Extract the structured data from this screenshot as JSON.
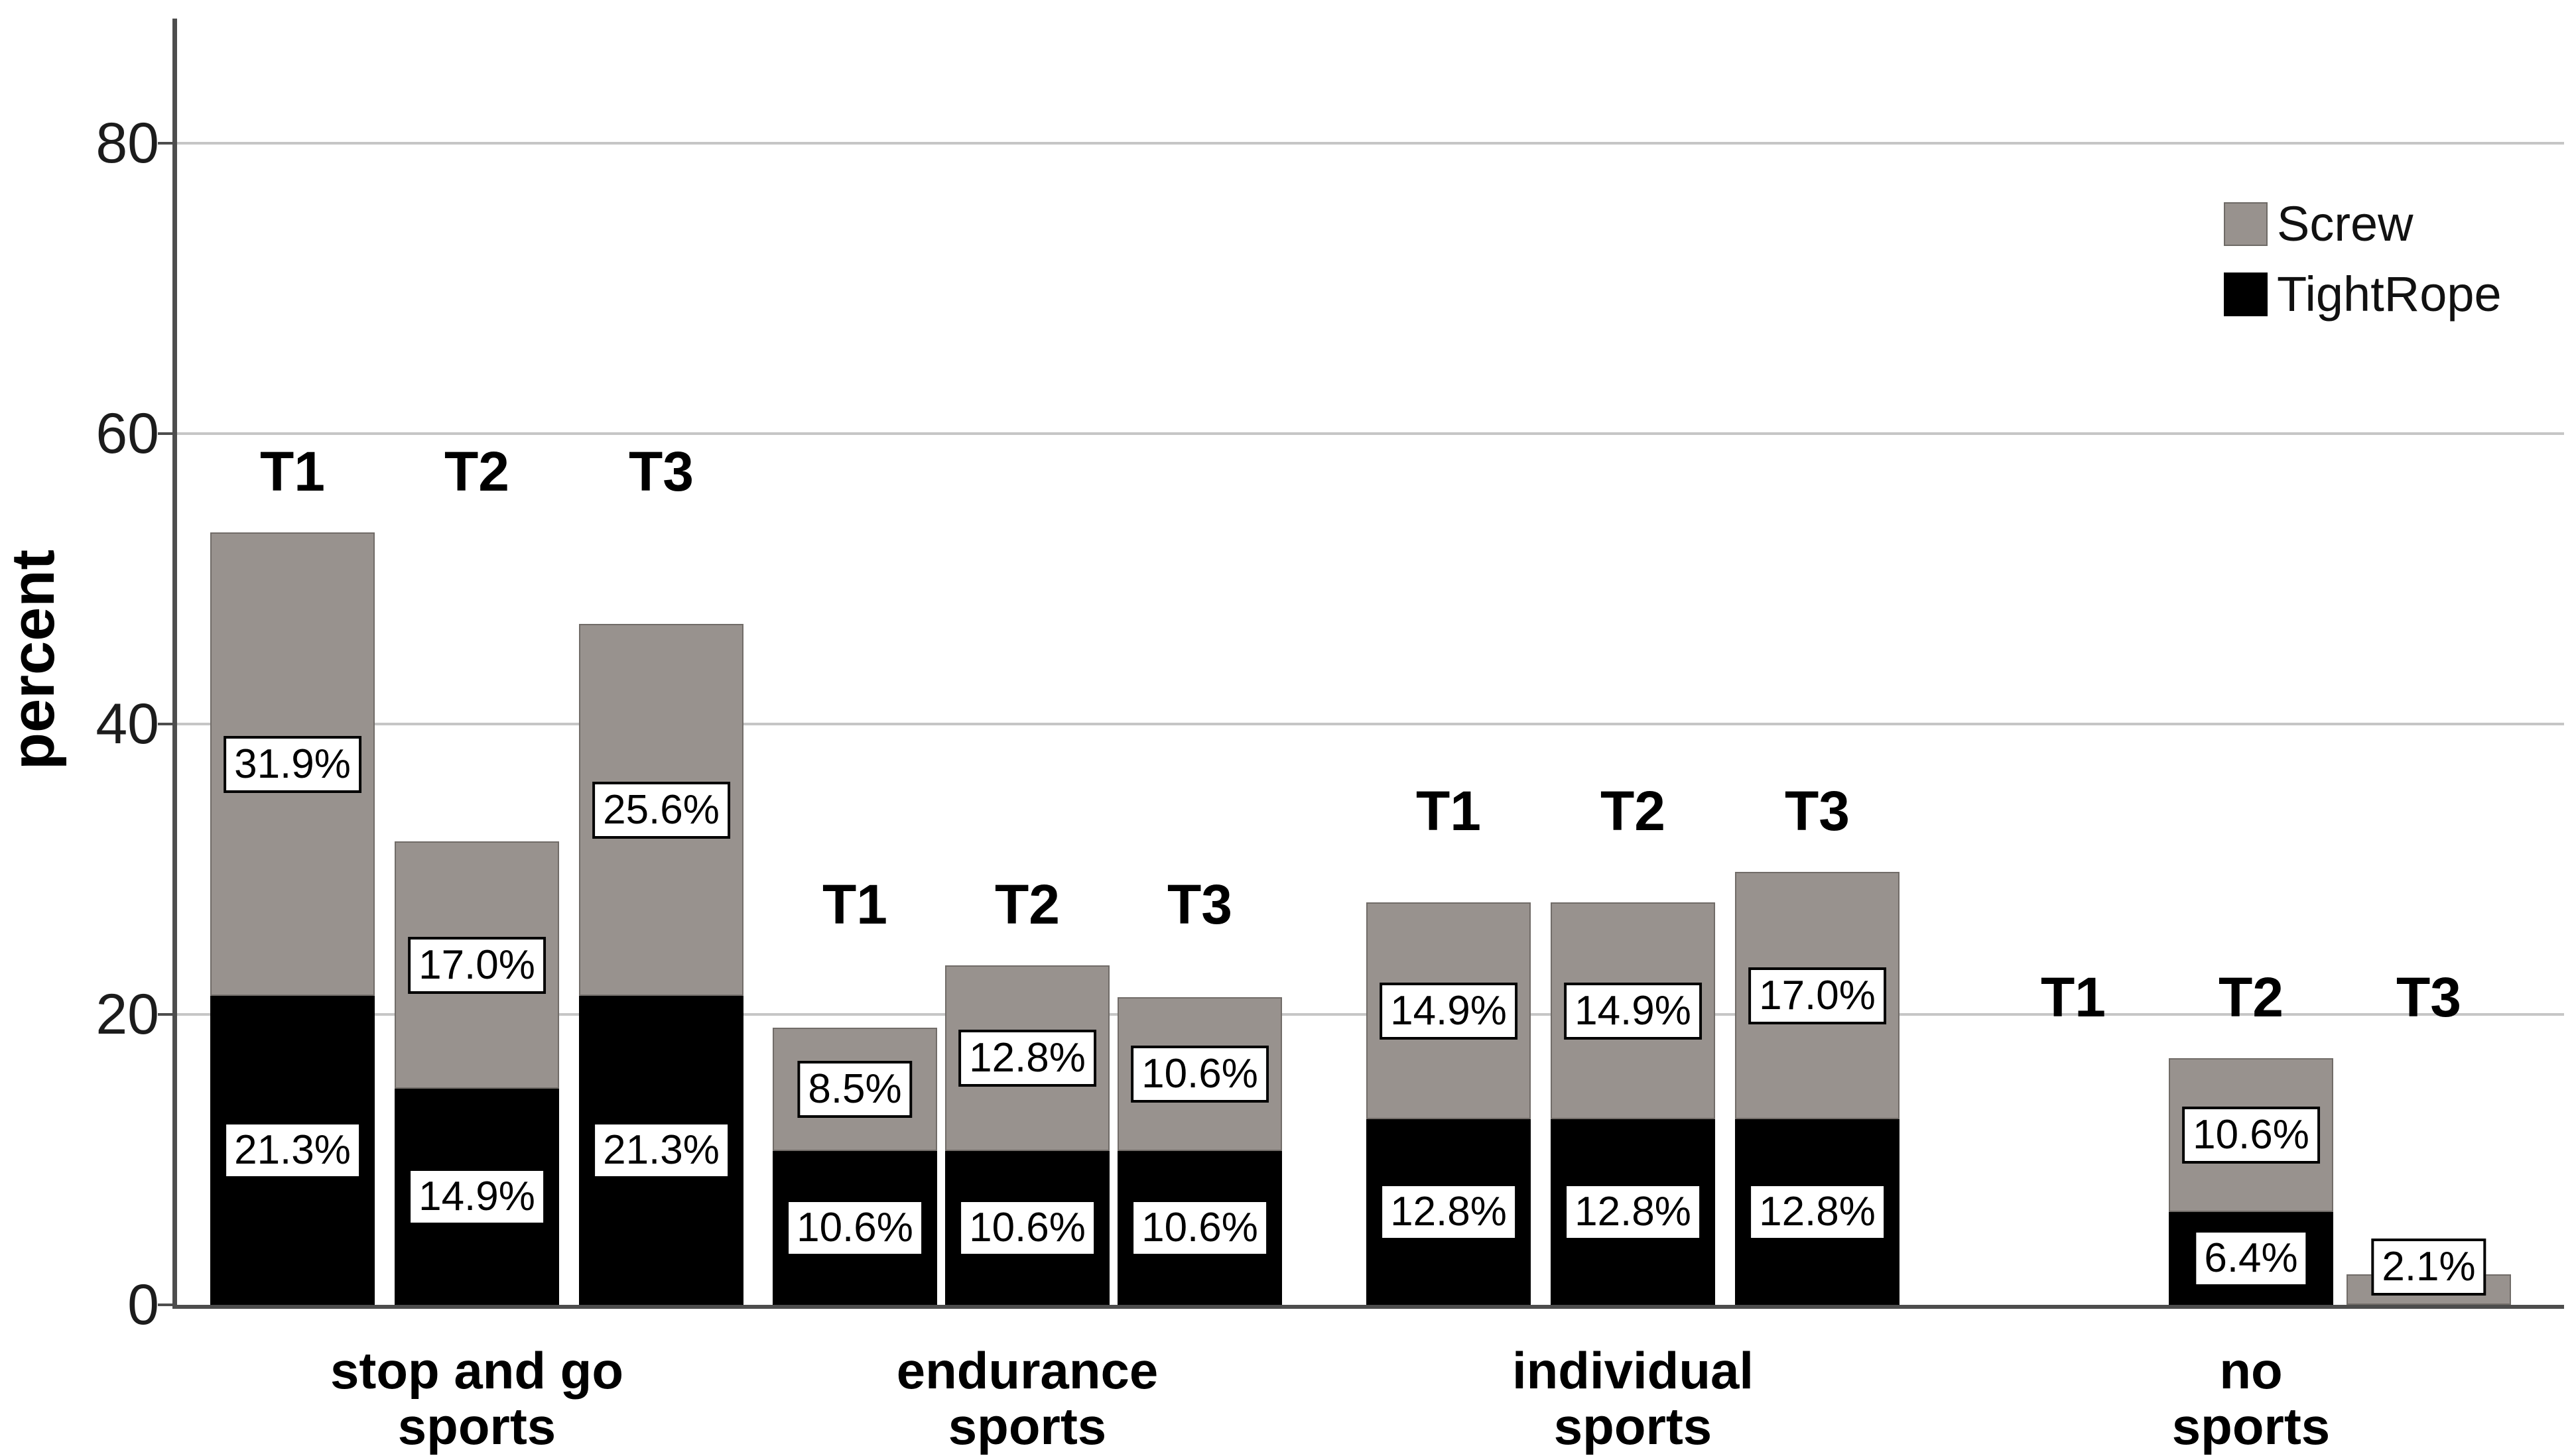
{
  "chart_data": {
    "type": "bar",
    "stacked": true,
    "title": "",
    "xlabel": "",
    "ylabel": "percent",
    "grid": "horizontal",
    "ylim": [
      0,
      88.5
    ],
    "y_ticks": [
      {
        "value": 0,
        "label": "0"
      },
      {
        "value": 20,
        "label": "20"
      },
      {
        "value": 40,
        "label": "40"
      },
      {
        "value": 60,
        "label": "60"
      },
      {
        "value": 80,
        "label": "80"
      }
    ],
    "legend": {
      "position": "top-right",
      "entries": [
        {
          "name": "Screw",
          "color": "#98928e"
        },
        {
          "name": "TightRope",
          "color": "#000000"
        }
      ]
    },
    "timepoints": [
      "T1",
      "T2",
      "T3"
    ],
    "groups": [
      {
        "category": "stop and go sports",
        "category_lines": [
          "stop and go",
          "sports"
        ],
        "bars": [
          {
            "t": "T1",
            "tightrope": 21.3,
            "screw": 31.9,
            "total": 53.2,
            "tightrope_label": "21.3%",
            "screw_label": "31.9%"
          },
          {
            "t": "T2",
            "tightrope": 14.9,
            "screw": 17.0,
            "total": 31.9,
            "tightrope_label": "14.9%",
            "screw_label": "17.0%"
          },
          {
            "t": "T3",
            "tightrope": 21.3,
            "screw": 25.6,
            "total": 46.9,
            "tightrope_label": "21.3%",
            "screw_label": "25.6%"
          }
        ]
      },
      {
        "category": "endurance sports",
        "category_lines": [
          "endurance",
          "sports"
        ],
        "bars": [
          {
            "t": "T1",
            "tightrope": 10.6,
            "screw": 8.5,
            "total": 19.1,
            "tightrope_label": "10.6%",
            "screw_label": "8.5%"
          },
          {
            "t": "T2",
            "tightrope": 10.6,
            "screw": 12.8,
            "total": 23.4,
            "tightrope_label": "10.6%",
            "screw_label": "12.8%"
          },
          {
            "t": "T3",
            "tightrope": 10.6,
            "screw": 10.6,
            "total": 21.2,
            "tightrope_label": "10.6%",
            "screw_label": "10.6%"
          }
        ]
      },
      {
        "category": "individual sports",
        "category_lines": [
          "individual",
          "sports"
        ],
        "bars": [
          {
            "t": "T1",
            "tightrope": 12.8,
            "screw": 14.9,
            "total": 27.7,
            "tightrope_label": "12.8%",
            "screw_label": "14.9%"
          },
          {
            "t": "T2",
            "tightrope": 12.8,
            "screw": 14.9,
            "total": 27.7,
            "tightrope_label": "12.8%",
            "screw_label": "14.9%"
          },
          {
            "t": "T3",
            "tightrope": 12.8,
            "screw": 17.0,
            "total": 29.8,
            "tightrope_label": "12.8%",
            "screw_label": "17.0%"
          }
        ]
      },
      {
        "category": "no sports",
        "category_lines": [
          "no",
          "sports"
        ],
        "bars": [
          {
            "t": "T1",
            "tightrope": 0,
            "screw": 0,
            "total": 0,
            "tightrope_label": "",
            "screw_label": ""
          },
          {
            "t": "T2",
            "tightrope": 6.4,
            "screw": 10.6,
            "total": 17.0,
            "tightrope_label": "6.4%",
            "screw_label": "10.6%"
          },
          {
            "t": "T3",
            "tightrope": 0,
            "screw": 2.1,
            "total": 2.1,
            "tightrope_label": "",
            "screw_label": "2.1%"
          }
        ]
      }
    ],
    "colors": {
      "screw": "#98928e",
      "tightrope": "#000000",
      "grid": "#c6c6c6",
      "axis": "#4d4d4d",
      "label_bg": "#ffffff",
      "label_border": "#000000"
    }
  }
}
